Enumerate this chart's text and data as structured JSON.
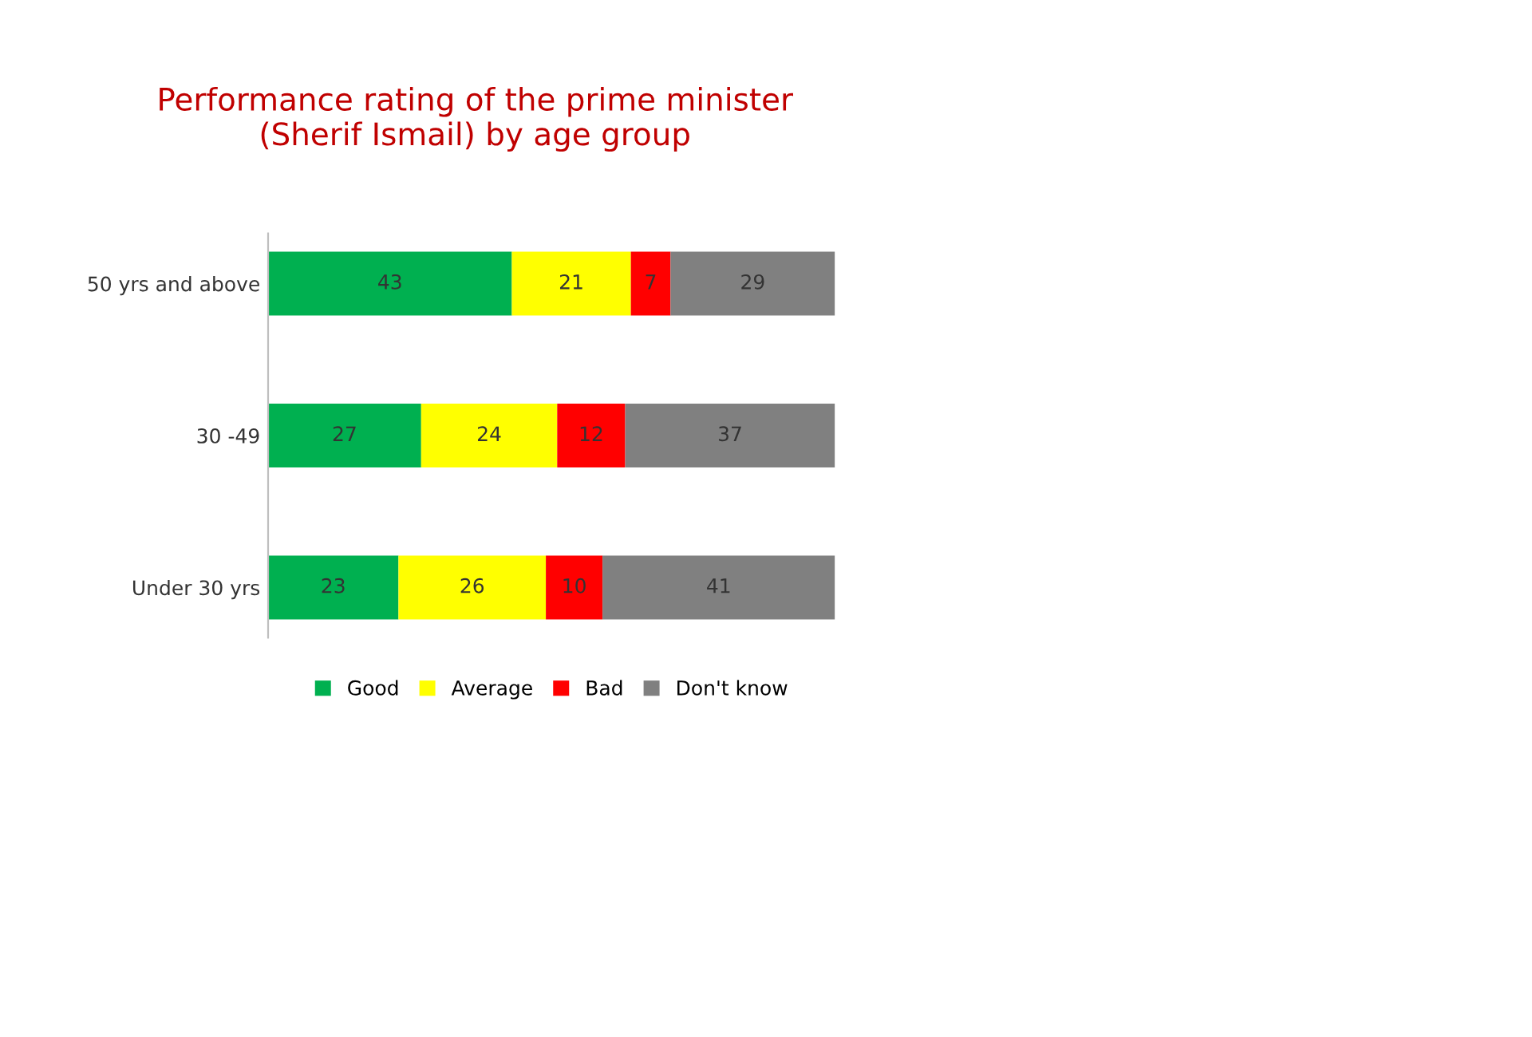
{
  "chart_data": {
    "type": "bar",
    "orientation": "horizontal",
    "stacked": true,
    "title": "Performance rating of the prime minister\n(Sherif Ismail) by age group",
    "categories": [
      "50 yrs and above",
      "30 -49",
      "Under 30 yrs"
    ],
    "series": [
      {
        "name": "Good",
        "color": "#00b050",
        "values": [
          43,
          27,
          23
        ]
      },
      {
        "name": "Average",
        "color": "#ffff00",
        "values": [
          21,
          24,
          26
        ]
      },
      {
        "name": "Bad",
        "color": "#ff0000",
        "values": [
          7,
          12,
          10
        ]
      },
      {
        "name": "Don't know",
        "color": "#808080",
        "values": [
          29,
          37,
          41
        ]
      }
    ],
    "xlim": [
      0,
      100
    ],
    "tick_labels": "y",
    "data_labels": true,
    "legend": "bottom",
    "grid": false
  }
}
